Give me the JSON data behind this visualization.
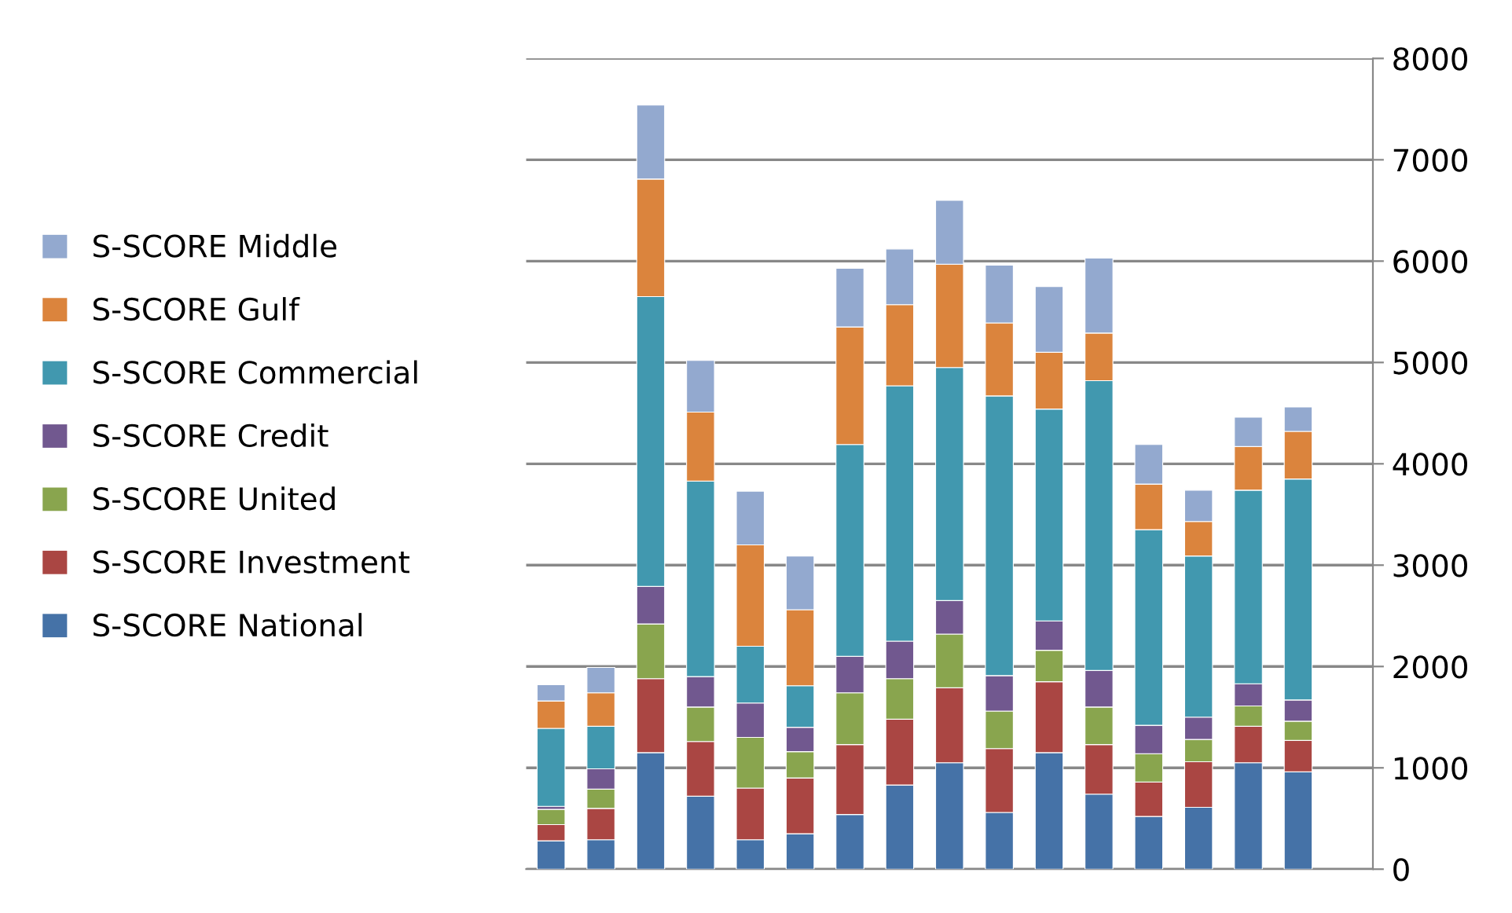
{
  "chart_data": {
    "type": "bar",
    "stacked": true,
    "categories": [
      null,
      null,
      null,
      null,
      null,
      null,
      null,
      null,
      null,
      null,
      null,
      null,
      null,
      null,
      null,
      null,
      null
    ],
    "series": [
      {
        "name": "S-SCORE National",
        "color": "#4572a7",
        "values": [
          280,
          290,
          1150,
          720,
          290,
          350,
          540,
          830,
          1050,
          560,
          1150,
          740,
          520,
          610,
          1050,
          960,
          null
        ]
      },
      {
        "name": "S-SCORE Investment",
        "color": "#aa4643",
        "values": [
          160,
          310,
          730,
          540,
          510,
          550,
          690,
          650,
          740,
          630,
          700,
          490,
          340,
          450,
          360,
          310,
          null
        ]
      },
      {
        "name": "S-SCORE United",
        "color": "#89a54e",
        "values": [
          150,
          190,
          540,
          340,
          500,
          260,
          510,
          400,
          530,
          370,
          310,
          370,
          280,
          220,
          200,
          190,
          null
        ]
      },
      {
        "name": "S-SCORE Credit",
        "color": "#71588f",
        "values": [
          30,
          200,
          370,
          300,
          340,
          240,
          360,
          370,
          330,
          350,
          290,
          360,
          280,
          220,
          220,
          210,
          null
        ]
      },
      {
        "name": "S-SCORE Commercial",
        "color": "#4198af",
        "values": [
          770,
          420,
          2860,
          1930,
          560,
          410,
          2090,
          2520,
          2300,
          2760,
          2090,
          2860,
          1930,
          1590,
          1910,
          2180,
          null
        ]
      },
      {
        "name": "S-SCORE Gulf",
        "color": "#db843d",
        "values": [
          270,
          330,
          1160,
          680,
          1000,
          750,
          1160,
          800,
          1020,
          720,
          560,
          470,
          450,
          340,
          430,
          470,
          null
        ]
      },
      {
        "name": "S-SCORE Middle",
        "color": "#93a9cf",
        "values": [
          160,
          250,
          730,
          510,
          530,
          530,
          580,
          550,
          630,
          570,
          650,
          740,
          390,
          310,
          290,
          240,
          null
        ]
      }
    ],
    "ylim": [
      0,
      8000
    ],
    "yticks": [
      0,
      1000,
      2000,
      3000,
      4000,
      5000,
      6000,
      7000,
      8000
    ],
    "grid": "y",
    "legend": "left"
  }
}
